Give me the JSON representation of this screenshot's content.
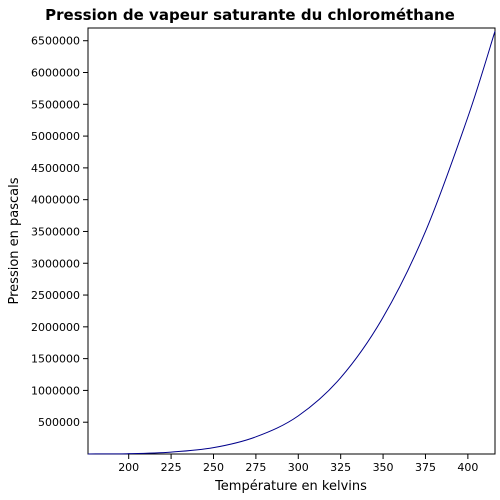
{
  "chart_data": {
    "type": "line",
    "title": "Pression de vapeur saturante du chlorométhane",
    "xlabel": "Température en kelvins",
    "ylabel": "Pression en pascals",
    "xlim": [
      176,
      416
    ],
    "ylim": [
      0,
      6700000
    ],
    "xticks": [
      200,
      225,
      250,
      275,
      300,
      325,
      350,
      375,
      400
    ],
    "xtick_labels": [
      "200",
      "225",
      "250",
      "275",
      "300",
      "325",
      "350",
      "375",
      "400"
    ],
    "yticks": [
      500000,
      1000000,
      1500000,
      2000000,
      2500000,
      3000000,
      3500000,
      4000000,
      4500000,
      5000000,
      5500000,
      6000000,
      6500000
    ],
    "ytick_labels": [
      "500000",
      "1000000",
      "1500000",
      "2000000",
      "2500000",
      "3000000",
      "3500000",
      "4000000",
      "4500000",
      "5000000",
      "5500000",
      "6000000",
      "6500000"
    ],
    "grid": false,
    "series": [
      {
        "color": "#00008b",
        "x": [
          176,
          200,
          225,
          250,
          275,
          300,
          325,
          350,
          375,
          400,
          416
        ],
        "y": [
          900,
          5000,
          30000,
          100000,
          270000,
          600000,
          1200000,
          2150000,
          3500000,
          5300000,
          6650000
        ]
      }
    ]
  }
}
